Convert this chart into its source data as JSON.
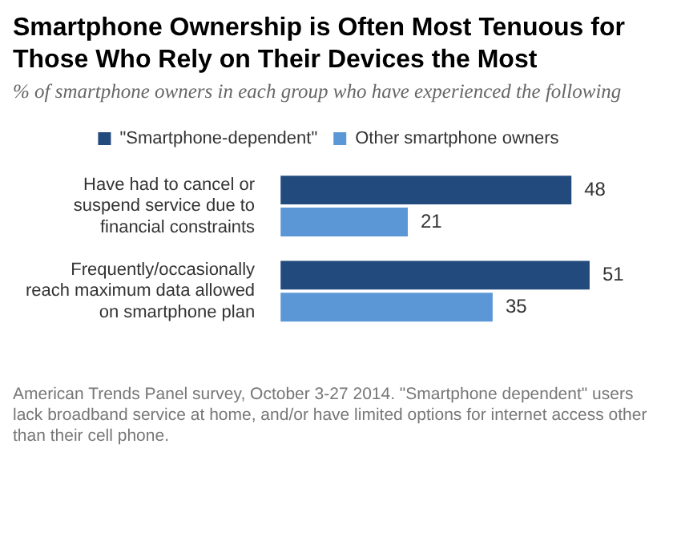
{
  "chart_data": {
    "type": "bar",
    "orientation": "horizontal",
    "title": "Smartphone Ownership is Often Most Tenuous for Those Who Rely on Their Devices the Most",
    "subtitle": "% of smartphone owners in each group who have experienced the following",
    "categories": [
      "Have had to cancel or suspend service due to financial constraints",
      "Frequently/occasionally reach maximum data allowed on smartphone plan"
    ],
    "series": [
      {
        "name": "\"Smartphone-dependent\"",
        "color": "#234a7c",
        "values": [
          48,
          51
        ]
      },
      {
        "name": "Other smartphone owners",
        "color": "#5b97d6",
        "values": [
          21,
          35
        ]
      }
    ],
    "data_labels": true,
    "legend": "top",
    "annotations": [
      "American Trends Panel survey, October 3-27 2014. \"Smartphone dependent\" users lack broadband service at home, and/or have limited options for internet access other than their cell phone."
    ]
  }
}
